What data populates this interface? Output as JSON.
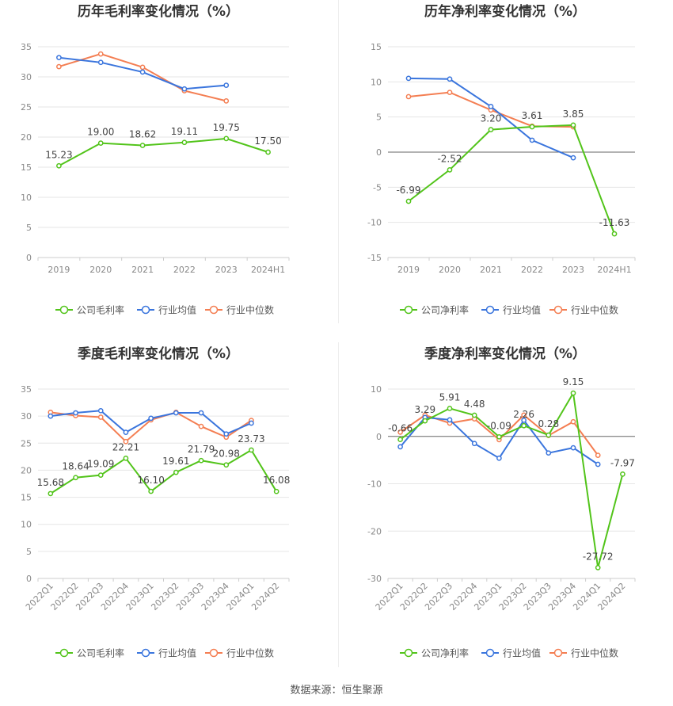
{
  "footer": "数据来源：恒生聚源",
  "colors": {
    "company": "#52c41a",
    "industry_avg": "#3a75dd",
    "industry_median": "#f47e52"
  },
  "chart_data": [
    {
      "type": "line",
      "title": "历年毛利率变化情况（%）",
      "categories": [
        "2019",
        "2020",
        "2021",
        "2022",
        "2023",
        "2024H1"
      ],
      "ylim": [
        0,
        35
      ],
      "yticks": [
        0,
        5,
        10,
        15,
        20,
        25,
        30,
        35
      ],
      "grid": true,
      "legend_position": "bottom",
      "series": [
        {
          "name": "公司毛利率",
          "color": "#52c41a",
          "show_labels": true,
          "values": [
            15.23,
            19.0,
            18.62,
            19.11,
            19.75,
            17.5
          ],
          "labels": [
            "15.23",
            "19.00",
            "18.62",
            "19.11",
            "19.75",
            "17.50"
          ]
        },
        {
          "name": "行业均值",
          "color": "#3a75dd",
          "show_labels": false,
          "values": [
            33.2,
            32.4,
            30.8,
            28.0,
            28.6,
            null
          ]
        },
        {
          "name": "行业中位数",
          "color": "#f47e52",
          "show_labels": false,
          "values": [
            31.7,
            33.8,
            31.6,
            27.7,
            26.0,
            null
          ]
        }
      ]
    },
    {
      "type": "line",
      "title": "历年净利率变化情况（%）",
      "categories": [
        "2019",
        "2020",
        "2021",
        "2022",
        "2023",
        "2024H1"
      ],
      "ylim": [
        -15,
        15
      ],
      "yticks": [
        -15,
        -10,
        -5,
        0,
        5,
        10,
        15
      ],
      "grid": true,
      "legend_position": "bottom",
      "series": [
        {
          "name": "公司净利率",
          "color": "#52c41a",
          "show_labels": true,
          "values": [
            -6.99,
            -2.52,
            3.2,
            3.61,
            3.85,
            -11.63
          ],
          "labels": [
            "-6.99",
            "-2.52",
            "3.20",
            "3.61",
            "3.85",
            "-11.63"
          ]
        },
        {
          "name": "行业均值",
          "color": "#3a75dd",
          "show_labels": false,
          "values": [
            10.5,
            10.4,
            6.5,
            1.7,
            -0.8,
            null
          ]
        },
        {
          "name": "行业中位数",
          "color": "#f47e52",
          "show_labels": false,
          "values": [
            7.9,
            8.5,
            6.0,
            3.7,
            3.6,
            null
          ]
        }
      ]
    },
    {
      "type": "line",
      "title": "季度毛利率变化情况（%）",
      "categories": [
        "2022Q1",
        "2022Q2",
        "2022Q3",
        "2022Q4",
        "2023Q1",
        "2023Q2",
        "2023Q3",
        "2023Q4",
        "2024Q1",
        "2024Q2"
      ],
      "ylim": [
        0,
        35
      ],
      "yticks": [
        0,
        5,
        10,
        15,
        20,
        25,
        30,
        35
      ],
      "grid": true,
      "legend_position": "bottom",
      "series": [
        {
          "name": "公司毛利率",
          "color": "#52c41a",
          "show_labels": true,
          "values": [
            15.68,
            18.64,
            19.09,
            22.21,
            16.1,
            19.61,
            21.79,
            20.98,
            23.73,
            16.08
          ],
          "labels": [
            "15.68",
            "18.64",
            "19.09",
            "22.21",
            "16.10",
            "19.61",
            "21.79",
            "20.98",
            "23.73",
            "16.08"
          ]
        },
        {
          "name": "行业均值",
          "color": "#3a75dd",
          "show_labels": false,
          "values": [
            30.0,
            30.6,
            31.0,
            27.0,
            29.6,
            30.6,
            30.6,
            26.7,
            28.7,
            null
          ]
        },
        {
          "name": "行业中位数",
          "color": "#f47e52",
          "show_labels": false,
          "values": [
            30.7,
            30.1,
            29.8,
            25.3,
            29.3,
            30.7,
            28.1,
            26.1,
            29.2,
            null
          ]
        }
      ]
    },
    {
      "type": "line",
      "title": "季度净利率变化情况（%）",
      "categories": [
        "2022Q1",
        "2022Q2",
        "2022Q3",
        "2022Q4",
        "2023Q1",
        "2023Q2",
        "2023Q3",
        "2023Q4",
        "2024Q1",
        "2024Q2"
      ],
      "ylim": [
        -30,
        10
      ],
      "yticks": [
        -30,
        -20,
        -10,
        0,
        10
      ],
      "grid": true,
      "legend_position": "bottom",
      "series": [
        {
          "name": "公司净利率",
          "color": "#52c41a",
          "show_labels": true,
          "values": [
            -0.66,
            3.29,
            5.91,
            4.48,
            -0.09,
            2.26,
            0.28,
            9.15,
            -27.72,
            -7.97
          ],
          "labels": [
            "-0.66",
            "3.29",
            "5.91",
            "4.48",
            "-0.09",
            "2.26",
            "0.28",
            "9.15",
            "-27.72",
            "-7.97"
          ]
        },
        {
          "name": "行业均值",
          "color": "#3a75dd",
          "show_labels": false,
          "values": [
            -2.2,
            4.0,
            3.5,
            -1.5,
            -4.6,
            3.4,
            -3.5,
            -2.4,
            -5.9,
            null
          ]
        },
        {
          "name": "行业中位数",
          "color": "#f47e52",
          "show_labels": false,
          "values": [
            0.9,
            4.5,
            2.8,
            3.7,
            -0.7,
            4.5,
            0.2,
            3.1,
            -4.0,
            null
          ]
        }
      ]
    }
  ]
}
